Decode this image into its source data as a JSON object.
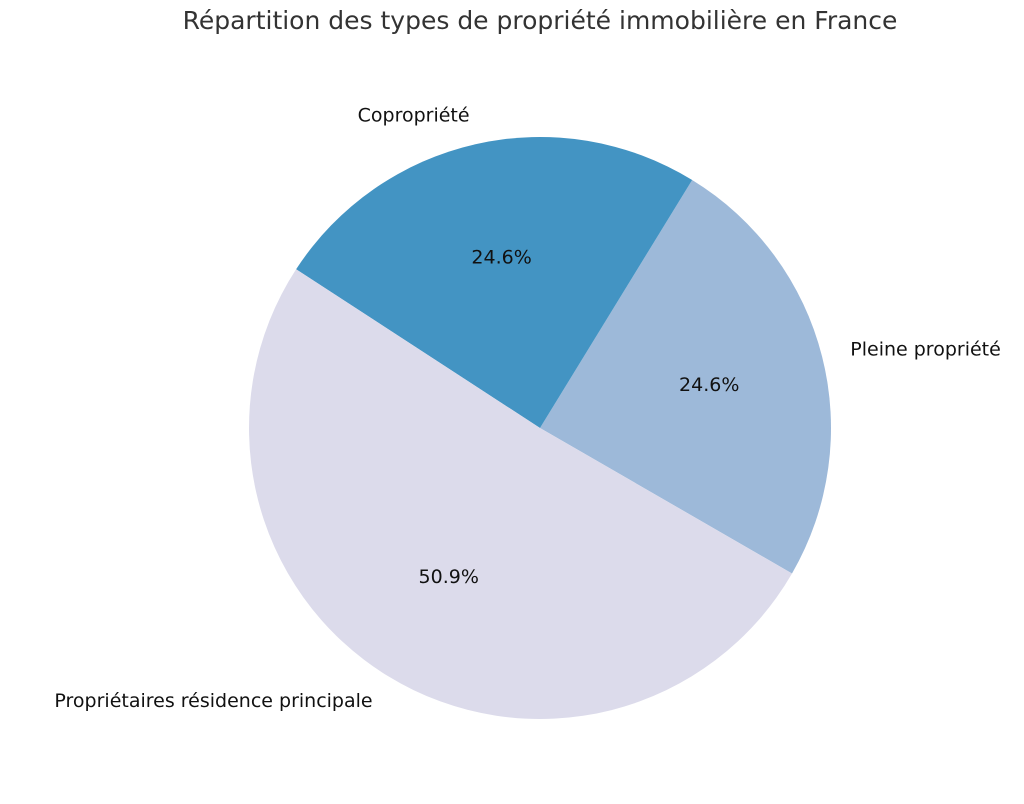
{
  "chart_data": {
    "type": "pie",
    "title": "Répartition des types de propriété immobilière en France",
    "slices": [
      {
        "label": "Pleine propriété",
        "value": 24.6,
        "pct_label": "24.6%",
        "color": "#9db9d9"
      },
      {
        "label": "Copropriété",
        "value": 24.6,
        "pct_label": "24.6%",
        "color": "#4394c3"
      },
      {
        "label": "Propriétaires résidence principale",
        "value": 50.9,
        "pct_label": "50.9%",
        "color": "#dcdbeb"
      }
    ],
    "start_angle_deg": 330,
    "direction": "counterclockwise",
    "legend": "none"
  }
}
